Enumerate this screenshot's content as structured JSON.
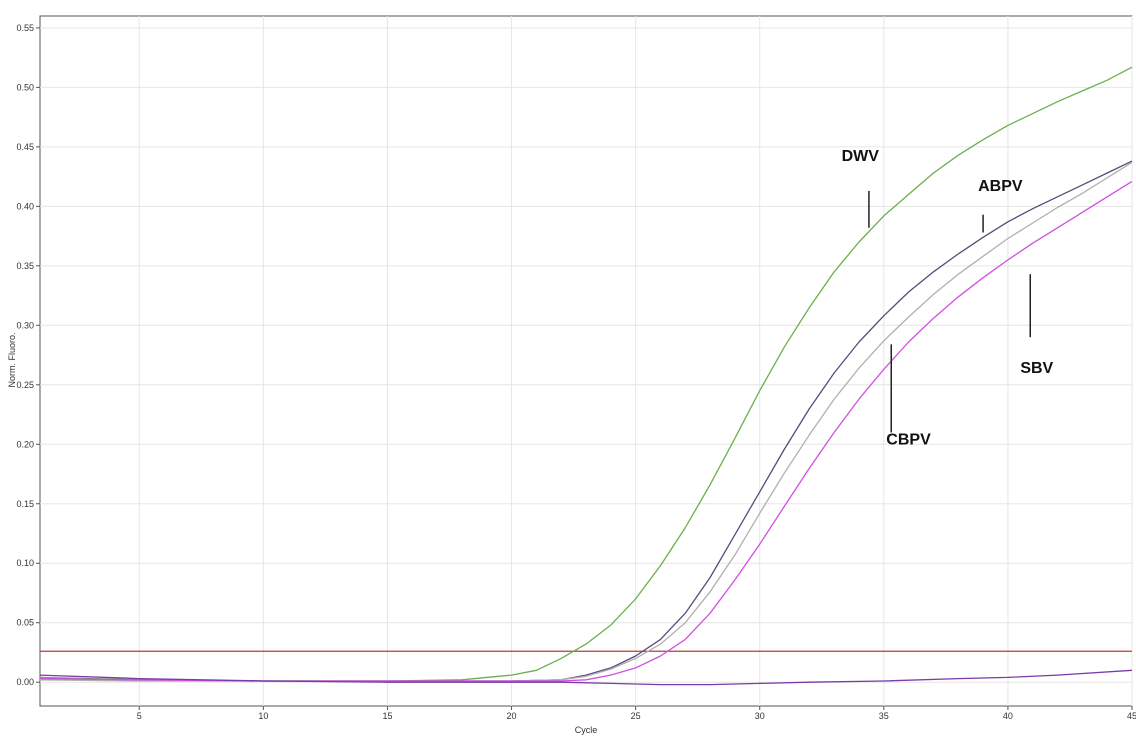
{
  "chart_data": {
    "type": "line",
    "title": "",
    "xlabel": "Cycle",
    "ylabel": "Norm. Fluoro.",
    "xlim": [
      1,
      45
    ],
    "ylim": [
      -0.02,
      0.56
    ],
    "xticks": [
      5,
      10,
      15,
      20,
      25,
      30,
      35,
      40,
      45
    ],
    "yticks": [
      "0.00",
      "0.05",
      "0.10",
      "0.15",
      "0.20",
      "0.25",
      "0.30",
      "0.35",
      "0.40",
      "0.45",
      "0.50",
      "0.55"
    ],
    "grid": true,
    "threshold": 0.026,
    "colors": {
      "DWV": "#6ab04c",
      "ABPV": "#5a4a7a",
      "CBPV": "#b0b0b0",
      "SBV": "#d050e0",
      "baseline": "#7a3aa8",
      "threshold": "#c0392b"
    },
    "series": [
      {
        "key": "DWV",
        "x": [
          1,
          5,
          10,
          15,
          18,
          20,
          21,
          22,
          23,
          24,
          25,
          26,
          27,
          28,
          29,
          30,
          31,
          32,
          33,
          34,
          35,
          36,
          37,
          38,
          39,
          40,
          41,
          42,
          43,
          44,
          45
        ],
        "y": [
          0.004,
          0.002,
          0.001,
          0.001,
          0.002,
          0.006,
          0.01,
          0.02,
          0.032,
          0.048,
          0.07,
          0.098,
          0.13,
          0.166,
          0.205,
          0.245,
          0.282,
          0.315,
          0.345,
          0.37,
          0.392,
          0.41,
          0.428,
          0.443,
          0.456,
          0.468,
          0.478,
          0.488,
          0.497,
          0.506,
          0.517
        ]
      },
      {
        "key": "ABPV",
        "x": [
          1,
          5,
          10,
          15,
          20,
          22,
          23,
          24,
          25,
          26,
          27,
          28,
          29,
          30,
          31,
          32,
          33,
          34,
          35,
          36,
          37,
          38,
          39,
          40,
          41,
          42,
          43,
          44,
          45
        ],
        "y": [
          0.003,
          0.002,
          0.001,
          0.001,
          0.001,
          0.002,
          0.006,
          0.012,
          0.022,
          0.036,
          0.058,
          0.088,
          0.124,
          0.16,
          0.196,
          0.23,
          0.26,
          0.286,
          0.308,
          0.328,
          0.345,
          0.36,
          0.374,
          0.387,
          0.398,
          0.408,
          0.418,
          0.428,
          0.438
        ]
      },
      {
        "key": "CBPV",
        "x": [
          1,
          5,
          10,
          15,
          20,
          22,
          23,
          24,
          25,
          26,
          27,
          28,
          29,
          30,
          31,
          32,
          33,
          34,
          35,
          36,
          37,
          38,
          39,
          40,
          41,
          42,
          43,
          44,
          45
        ],
        "y": [
          0.002,
          0.001,
          0.001,
          0.001,
          0.001,
          0.002,
          0.005,
          0.011,
          0.02,
          0.032,
          0.05,
          0.076,
          0.107,
          0.142,
          0.176,
          0.208,
          0.238,
          0.264,
          0.287,
          0.307,
          0.326,
          0.343,
          0.358,
          0.373,
          0.386,
          0.399,
          0.411,
          0.424,
          0.437
        ]
      },
      {
        "key": "SBV",
        "x": [
          1,
          5,
          10,
          15,
          20,
          22,
          23,
          24,
          25,
          26,
          27,
          28,
          29,
          30,
          31,
          32,
          33,
          34,
          35,
          36,
          37,
          38,
          39,
          40,
          41,
          42,
          43,
          44,
          45
        ],
        "y": [
          0.003,
          0.002,
          0.001,
          0.001,
          0.001,
          0.001,
          0.002,
          0.006,
          0.012,
          0.022,
          0.036,
          0.058,
          0.086,
          0.116,
          0.148,
          0.18,
          0.21,
          0.238,
          0.263,
          0.286,
          0.306,
          0.324,
          0.34,
          0.355,
          0.369,
          0.382,
          0.395,
          0.408,
          0.421
        ]
      },
      {
        "key": "baseline",
        "x": [
          1,
          5,
          10,
          15,
          20,
          22,
          24,
          26,
          28,
          30,
          32,
          35,
          38,
          40,
          42,
          45
        ],
        "y": [
          0.006,
          0.003,
          0.001,
          0.0,
          0.0,
          0.0,
          -0.001,
          -0.002,
          -0.002,
          -0.001,
          0.0,
          0.001,
          0.003,
          0.004,
          0.006,
          0.01
        ]
      }
    ],
    "annotations": [
      {
        "text": "DWV",
        "label_x": 33.3,
        "label_y": 0.438,
        "line_from": [
          34.4,
          0.413
        ],
        "line_to": [
          34.4,
          0.382
        ]
      },
      {
        "text": "ABPV",
        "label_x": 38.8,
        "label_y": 0.413,
        "line_from": [
          39.0,
          0.393
        ],
        "line_to": [
          39.0,
          0.378
        ]
      },
      {
        "text": "CBPV",
        "label_x": 35.1,
        "label_y": 0.2,
        "line_from": [
          35.3,
          0.21
        ],
        "line_to": [
          35.3,
          0.284
        ]
      },
      {
        "text": "SBV",
        "label_x": 40.5,
        "label_y": 0.26,
        "line_from": [
          40.9,
          0.29
        ],
        "line_to": [
          40.9,
          0.343
        ]
      }
    ]
  }
}
